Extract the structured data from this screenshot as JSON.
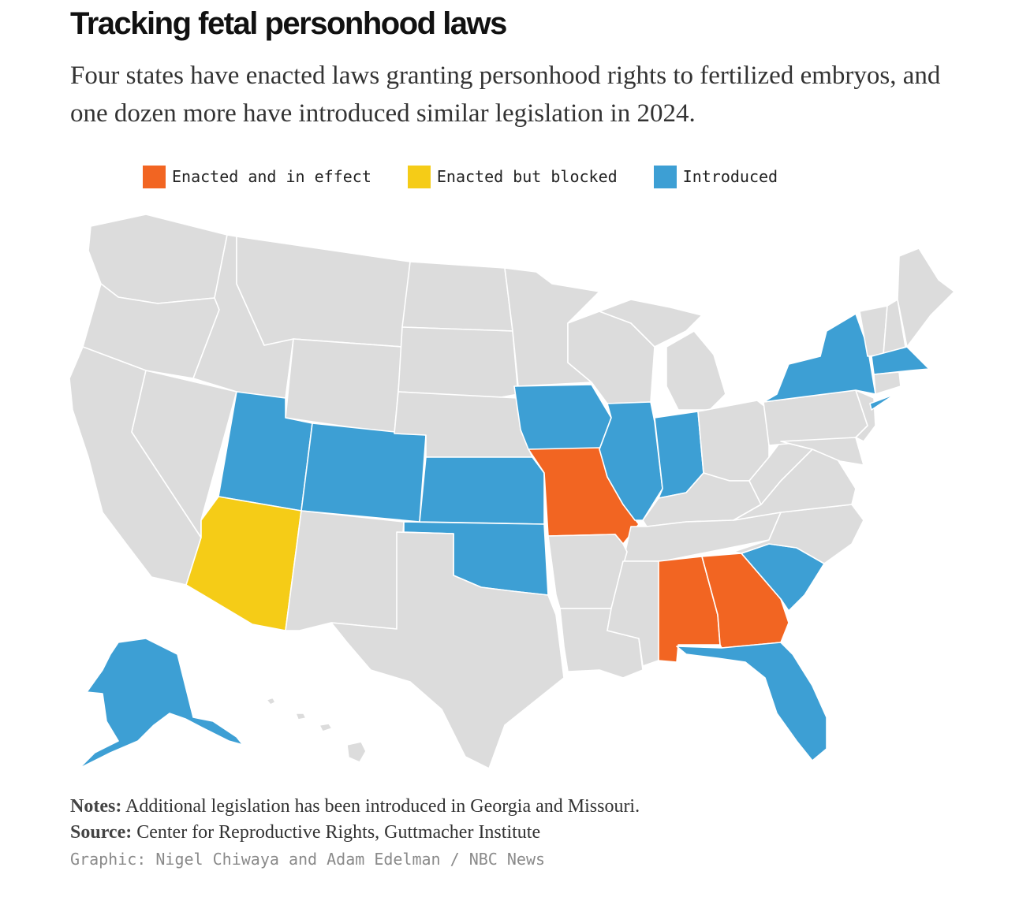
{
  "title": "Tracking fetal personhood laws",
  "subtitle": "Four states have enacted laws granting personhood rights to fertilized embryos, and one dozen more have introduced similar legislation in 2024.",
  "legend": {
    "enacted": {
      "label": "Enacted and in effect",
      "color": "#f26522"
    },
    "blocked": {
      "label": "Enacted but blocked",
      "color": "#f5cc17"
    },
    "introduced": {
      "label": "Introduced",
      "color": "#3d9fd4"
    }
  },
  "default_state_color": "#dcdcdc",
  "map_data": {
    "enacted_and_in_effect": [
      "Missouri",
      "Alabama",
      "Georgia"
    ],
    "enacted_but_blocked": [
      "Arizona"
    ],
    "introduced": [
      "Alaska",
      "Utah",
      "Colorado",
      "Kansas",
      "Oklahoma",
      "Iowa",
      "Illinois",
      "Indiana",
      "New York",
      "Massachusetts",
      "South Carolina",
      "Florida"
    ]
  },
  "notes": {
    "label": "Notes:",
    "text": "Additional legislation has been introduced in Georgia and Missouri."
  },
  "source": {
    "label": "Source:",
    "text": "Center for Reproductive Rights, Guttmacher Institute"
  },
  "credit": "Graphic: Nigel Chiwaya and Adam Edelman / NBC News"
}
